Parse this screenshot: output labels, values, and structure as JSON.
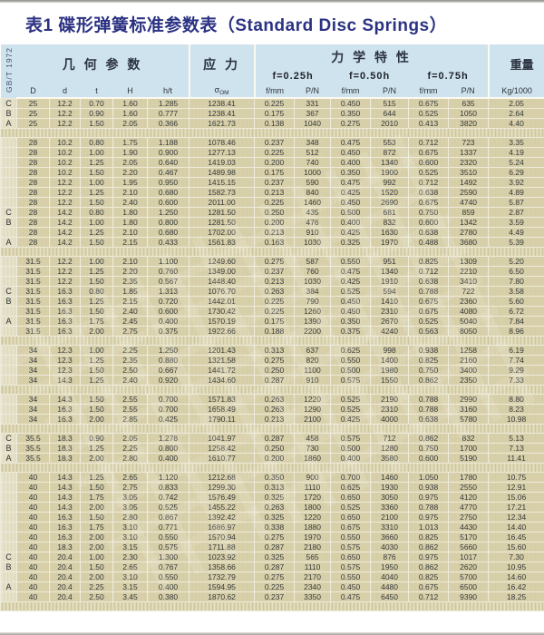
{
  "title": "表1 碟形弹簧标准参数表（Standard Disc Springs）",
  "standard_label": "GB/T 1972",
  "colors": {
    "header_bg": "#cfe3ee",
    "body_bg": "#d6cea6",
    "title_text": "#2b3282"
  },
  "table": {
    "groups": {
      "geometry": "几 何 参 数",
      "stress": "应 力",
      "mechanical": "力 学 特 性",
      "weight": "重量"
    },
    "deflection_levels": [
      "f=0.25h",
      "f=0.50h",
      "f=0.75h"
    ],
    "columns": [
      "D",
      "d",
      "t",
      "H",
      "h/t",
      "σ_OM",
      "f/mm",
      "P/N",
      "f/mm",
      "P/N",
      "f/mm",
      "P/N",
      "Kg/1000"
    ],
    "rows": [
      {
        "s": "C",
        "v": [
          "25",
          "12.2",
          "0.70",
          "1.60",
          "1.285",
          "1238.41",
          "0.225",
          "331",
          "0.450",
          "515",
          "0.675",
          "635",
          "2.05"
        ]
      },
      {
        "s": "B",
        "v": [
          "25",
          "12.2",
          "0.90",
          "1.60",
          "0.777",
          "1238.41",
          "0.175",
          "367",
          "0.350",
          "644",
          "0.525",
          "1050",
          "2.64"
        ]
      },
      {
        "s": "A",
        "v": [
          "25",
          "12.2",
          "1.50",
          "2.05",
          "0.366",
          "1621.73",
          "0.138",
          "1040",
          "0.275",
          "2010",
          "0.413",
          "3820",
          "4.40"
        ]
      },
      {
        "gap": true
      },
      {
        "v": [
          "28",
          "10.2",
          "0.80",
          "1.75",
          "1.188",
          "1078.46",
          "0.237",
          "348",
          "0.475",
          "553",
          "0.712",
          "723",
          "3.35"
        ]
      },
      {
        "v": [
          "28",
          "10.2",
          "1.00",
          "1.90",
          "0.900",
          "1277.13",
          "0.225",
          "512",
          "0.450",
          "872",
          "0.675",
          "1337",
          "4.19"
        ]
      },
      {
        "v": [
          "28",
          "10.2",
          "1.25",
          "2.05",
          "0.640",
          "1419.03",
          "0.200",
          "740",
          "0.400",
          "1340",
          "0.600",
          "2320",
          "5.24"
        ]
      },
      {
        "v": [
          "28",
          "10.2",
          "1.50",
          "2.20",
          "0.467",
          "1489.98",
          "0.175",
          "1000",
          "0.350",
          "1900",
          "0.525",
          "3510",
          "6.29"
        ]
      },
      {
        "v": [
          "28",
          "12.2",
          "1.00",
          "1.95",
          "0.950",
          "1415.15",
          "0.237",
          "590",
          "0.475",
          "992",
          "0.712",
          "1492",
          "3.92"
        ]
      },
      {
        "v": [
          "28",
          "12.2",
          "1.25",
          "2.10",
          "0.680",
          "1582.73",
          "0.213",
          "840",
          "0.425",
          "1520",
          "0.638",
          "2590",
          "4.89"
        ]
      },
      {
        "v": [
          "28",
          "12.2",
          "1.50",
          "2.40",
          "0.600",
          "2011.00",
          "0.225",
          "1460",
          "0.450",
          "2690",
          "0.675",
          "4740",
          "5.87"
        ]
      },
      {
        "s": "C",
        "v": [
          "28",
          "14.2",
          "0.80",
          "1.80",
          "1.250",
          "1281.50",
          "0.250",
          "435",
          "0.500",
          "681",
          "0.750",
          "859",
          "2.87"
        ]
      },
      {
        "s": "B",
        "v": [
          "28",
          "14.2",
          "1.00",
          "1.80",
          "0.800",
          "1281.50",
          "0.200",
          "476",
          "0.400",
          "832",
          "0.600",
          "1342",
          "3.59"
        ]
      },
      {
        "v": [
          "28",
          "14.2",
          "1.25",
          "2.10",
          "0.680",
          "1702.00",
          "0.213",
          "910",
          "0.425",
          "1630",
          "0.638",
          "2780",
          "4.49"
        ]
      },
      {
        "s": "A",
        "v": [
          "28",
          "14.2",
          "1.50",
          "2.15",
          "0.433",
          "1561.83",
          "0.163",
          "1030",
          "0.325",
          "1970",
          "0.488",
          "3680",
          "5.39"
        ]
      },
      {
        "gap": true
      },
      {
        "v": [
          "31.5",
          "12.2",
          "1.00",
          "2.10",
          "1.100",
          "1249.60",
          "0.275",
          "587",
          "0.550",
          "951",
          "0.825",
          "1309",
          "5.20"
        ]
      },
      {
        "v": [
          "31.5",
          "12.2",
          "1.25",
          "2.20",
          "0.760",
          "1349.00",
          "0.237",
          "760",
          "0.475",
          "1340",
          "0.712",
          "2210",
          "6.50"
        ]
      },
      {
        "v": [
          "31.5",
          "12.2",
          "1.50",
          "2.35",
          "0.567",
          "1448.40",
          "0.213",
          "1030",
          "0.425",
          "1910",
          "0.638",
          "3410",
          "7.80"
        ]
      },
      {
        "s": "C",
        "v": [
          "31.5",
          "16.3",
          "0.80",
          "1.85",
          "1.313",
          "1076.70",
          "0.263",
          "384",
          "0.525",
          "594",
          "0.788",
          "722",
          "3.58"
        ]
      },
      {
        "s": "B",
        "v": [
          "31.5",
          "16.3",
          "1.25",
          "2.15",
          "0.720",
          "1442.01",
          "0.225",
          "790",
          "0.450",
          "1410",
          "0.675",
          "2360",
          "5.60"
        ]
      },
      {
        "v": [
          "31.5",
          "16.3",
          "1.50",
          "2.40",
          "0.600",
          "1730.42",
          "0.225",
          "1260",
          "0.450",
          "2310",
          "0.675",
          "4080",
          "6.72"
        ]
      },
      {
        "s": "A",
        "v": [
          "31.5",
          "16.3",
          "1.75",
          "2.45",
          "0.400",
          "1570.19",
          "0.175",
          "1390",
          "0.350",
          "2670",
          "0.525",
          "5040",
          "7.84"
        ]
      },
      {
        "v": [
          "31.5",
          "16.3",
          "2.00",
          "2.75",
          "0.375",
          "1922.66",
          "0.188",
          "2200",
          "0.375",
          "4240",
          "0.563",
          "8050",
          "8.96"
        ]
      },
      {
        "gap": true
      },
      {
        "v": [
          "34",
          "12.3",
          "1.00",
          "2.25",
          "1.250",
          "1201.43",
          "0.313",
          "637",
          "0.625",
          "998",
          "0.938",
          "1258",
          "6.19"
        ]
      },
      {
        "v": [
          "34",
          "12.3",
          "1.25",
          "2.35",
          "0.880",
          "1321.58",
          "0.275",
          "820",
          "0.550",
          "1400",
          "0.825",
          "2160",
          "7.74"
        ]
      },
      {
        "v": [
          "34",
          "12.3",
          "1.50",
          "2.50",
          "0.667",
          "1441.72",
          "0.250",
          "1100",
          "0.500",
          "1980",
          "0.750",
          "3400",
          "9.29"
        ]
      },
      {
        "v": [
          "34",
          "14.3",
          "1.25",
          "2.40",
          "0.920",
          "1434.60",
          "0.287",
          "910",
          "0.575",
          "1550",
          "0.862",
          "2350",
          "7.33"
        ]
      },
      {
        "gap": true
      },
      {
        "v": [
          "34",
          "14.3",
          "1.50",
          "2.55",
          "0.700",
          "1571.83",
          "0.263",
          "1220",
          "0.525",
          "2190",
          "0.788",
          "2990",
          "8.80"
        ]
      },
      {
        "v": [
          "34",
          "16.3",
          "1.50",
          "2.55",
          "0.700",
          "1658.49",
          "0.263",
          "1290",
          "0.525",
          "2310",
          "0.788",
          "3160",
          "8.23"
        ]
      },
      {
        "v": [
          "34",
          "16.3",
          "2.00",
          "2.85",
          "0.425",
          "1790.11",
          "0.213",
          "2100",
          "0.425",
          "4000",
          "0.638",
          "5780",
          "10.98"
        ]
      },
      {
        "gap": true
      },
      {
        "s": "C",
        "v": [
          "35.5",
          "18.3",
          "0.90",
          "2.05",
          "1.278",
          "1041.97",
          "0.287",
          "458",
          "0.575",
          "712",
          "0.862",
          "832",
          "5.13"
        ]
      },
      {
        "s": "B",
        "v": [
          "35.5",
          "18.3",
          "1.25",
          "2.25",
          "0.800",
          "1258.42",
          "0.250",
          "730",
          "0.500",
          "1280",
          "0.750",
          "1700",
          "7.13"
        ]
      },
      {
        "s": "A",
        "v": [
          "35.5",
          "18.3",
          "2.00",
          "2.80",
          "0.400",
          "1610.77",
          "0.200",
          "1860",
          "0.400",
          "3580",
          "0.600",
          "5190",
          "11.41"
        ]
      },
      {
        "gap": true
      },
      {
        "v": [
          "40",
          "14.3",
          "1.25",
          "2.65",
          "1.120",
          "1212.68",
          "0.350",
          "900",
          "0.700",
          "1460",
          "1.050",
          "1780",
          "10.75"
        ]
      },
      {
        "v": [
          "40",
          "14.3",
          "1.50",
          "2.75",
          "0.833",
          "1299.30",
          "0.313",
          "1110",
          "0.625",
          "1930",
          "0.938",
          "2550",
          "12.91"
        ]
      },
      {
        "v": [
          "40",
          "14.3",
          "1.75",
          "3.05",
          "0.742",
          "1576.49",
          "0.325",
          "1720",
          "0.650",
          "3050",
          "0.975",
          "4120",
          "15.06"
        ]
      },
      {
        "v": [
          "40",
          "14.3",
          "2.00",
          "3.05",
          "0.525",
          "1455.22",
          "0.263",
          "1800",
          "0.525",
          "3360",
          "0.788",
          "4770",
          "17.21"
        ]
      },
      {
        "v": [
          "40",
          "16.3",
          "1.50",
          "2.80",
          "0.867",
          "1392.42",
          "0.325",
          "1220",
          "0.650",
          "2100",
          "0.975",
          "2750",
          "12.34"
        ]
      },
      {
        "v": [
          "40",
          "16.3",
          "1.75",
          "3.10",
          "0.771",
          "1686.97",
          "0.338",
          "1880",
          "0.675",
          "3310",
          "1.013",
          "4430",
          "14.40"
        ]
      },
      {
        "v": [
          "40",
          "16.3",
          "2.00",
          "3.10",
          "0.550",
          "1570.94",
          "0.275",
          "1970",
          "0.550",
          "3660",
          "0.825",
          "5170",
          "16.45"
        ]
      },
      {
        "v": [
          "40",
          "18.3",
          "2.00",
          "3.15",
          "0.575",
          "1711.88",
          "0.287",
          "2180",
          "0.575",
          "4030",
          "0.862",
          "5660",
          "15.60"
        ]
      },
      {
        "s": "C",
        "v": [
          "40",
          "20.4",
          "1.00",
          "2.30",
          "1.300",
          "1023.92",
          "0.325",
          "565",
          "0.650",
          "876",
          "0.975",
          "1017",
          "7.30"
        ]
      },
      {
        "s": "B",
        "v": [
          "40",
          "20.4",
          "1.50",
          "2.65",
          "0.767",
          "1358.66",
          "0.287",
          "1110",
          "0.575",
          "1950",
          "0.862",
          "2620",
          "10.95"
        ]
      },
      {
        "v": [
          "40",
          "20.4",
          "2.00",
          "3.10",
          "0.550",
          "1732.79",
          "0.275",
          "2170",
          "0.550",
          "4040",
          "0.825",
          "5700",
          "14.60"
        ]
      },
      {
        "s": "A",
        "v": [
          "40",
          "20.4",
          "2.25",
          "3.15",
          "0.400",
          "1594.95",
          "0.225",
          "2340",
          "0.450",
          "4480",
          "0.675",
          "6500",
          "16.42"
        ]
      },
      {
        "v": [
          "40",
          "20.4",
          "2.50",
          "3.45",
          "0.380",
          "1870.62",
          "0.237",
          "3350",
          "0.475",
          "6450",
          "0.712",
          "9390",
          "18.25"
        ]
      },
      {
        "gap": true
      }
    ]
  }
}
